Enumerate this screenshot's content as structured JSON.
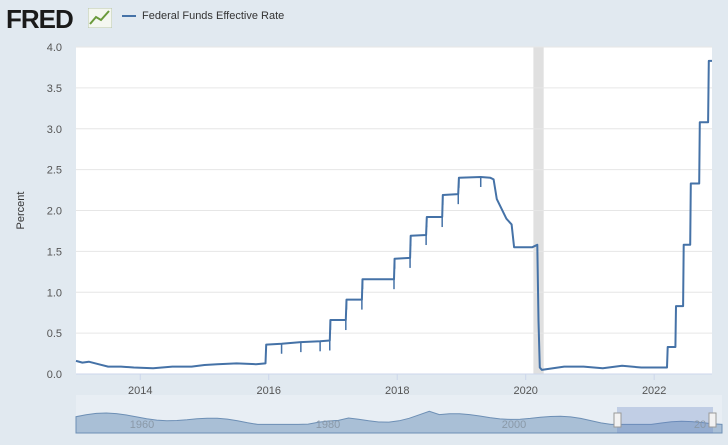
{
  "header": {
    "logo_text": "FRED",
    "legend_label": "Federal Funds Effective Rate",
    "series_color": "#4572a7"
  },
  "chart_data": {
    "type": "line",
    "title": "",
    "xlabel": "",
    "ylabel": "Percent",
    "xlim": [
      2013.0,
      2022.9
    ],
    "ylim": [
      0,
      4.0
    ],
    "y_ticks": [
      "0.0",
      "0.5",
      "1.0",
      "1.5",
      "2.0",
      "2.5",
      "3.0",
      "3.5",
      "4.0"
    ],
    "x_ticks": [
      "2014",
      "2016",
      "2018",
      "2020",
      "2022"
    ],
    "recession_band": [
      2020.12,
      2020.28
    ],
    "grid": "horizontal",
    "legend_position": "top-left",
    "series": [
      {
        "name": "Federal Funds Effective Rate",
        "points": [
          [
            2013.0,
            0.16
          ],
          [
            2013.1,
            0.14
          ],
          [
            2013.2,
            0.15
          ],
          [
            2013.35,
            0.12
          ],
          [
            2013.5,
            0.09
          ],
          [
            2013.7,
            0.09
          ],
          [
            2013.9,
            0.08
          ],
          [
            2014.2,
            0.07
          ],
          [
            2014.5,
            0.09
          ],
          [
            2014.8,
            0.09
          ],
          [
            2015.0,
            0.11
          ],
          [
            2015.2,
            0.12
          ],
          [
            2015.5,
            0.13
          ],
          [
            2015.8,
            0.12
          ],
          [
            2015.95,
            0.13
          ],
          [
            2015.96,
            0.36
          ],
          [
            2016.2,
            0.37
          ],
          [
            2016.5,
            0.39
          ],
          [
            2016.8,
            0.4
          ],
          [
            2016.95,
            0.41
          ],
          [
            2016.96,
            0.66
          ],
          [
            2017.2,
            0.66
          ],
          [
            2017.21,
            0.91
          ],
          [
            2017.45,
            0.91
          ],
          [
            2017.46,
            1.16
          ],
          [
            2017.95,
            1.16
          ],
          [
            2017.96,
            1.41
          ],
          [
            2018.2,
            1.42
          ],
          [
            2018.21,
            1.69
          ],
          [
            2018.45,
            1.7
          ],
          [
            2018.46,
            1.92
          ],
          [
            2018.7,
            1.92
          ],
          [
            2018.71,
            2.19
          ],
          [
            2018.95,
            2.2
          ],
          [
            2018.96,
            2.4
          ],
          [
            2019.3,
            2.41
          ],
          [
            2019.45,
            2.4
          ],
          [
            2019.5,
            2.38
          ],
          [
            2019.55,
            2.14
          ],
          [
            2019.7,
            1.9
          ],
          [
            2019.78,
            1.83
          ],
          [
            2019.82,
            1.55
          ],
          [
            2020.1,
            1.55
          ],
          [
            2020.18,
            1.58
          ],
          [
            2020.2,
            0.65
          ],
          [
            2020.22,
            0.08
          ],
          [
            2020.25,
            0.05
          ],
          [
            2020.6,
            0.09
          ],
          [
            2020.9,
            0.09
          ],
          [
            2021.2,
            0.07
          ],
          [
            2021.5,
            0.1
          ],
          [
            2021.8,
            0.08
          ],
          [
            2022.1,
            0.08
          ],
          [
            2022.2,
            0.08
          ],
          [
            2022.21,
            0.33
          ],
          [
            2022.33,
            0.33
          ],
          [
            2022.34,
            0.83
          ],
          [
            2022.45,
            0.83
          ],
          [
            2022.46,
            1.58
          ],
          [
            2022.56,
            1.58
          ],
          [
            2022.57,
            2.33
          ],
          [
            2022.7,
            2.33
          ],
          [
            2022.71,
            3.08
          ],
          [
            2022.84,
            3.08
          ],
          [
            2022.85,
            3.83
          ],
          [
            2022.9,
            3.83
          ]
        ]
      }
    ],
    "navigator": {
      "labels": [
        "1960",
        "1980",
        "2000",
        "20"
      ]
    }
  }
}
